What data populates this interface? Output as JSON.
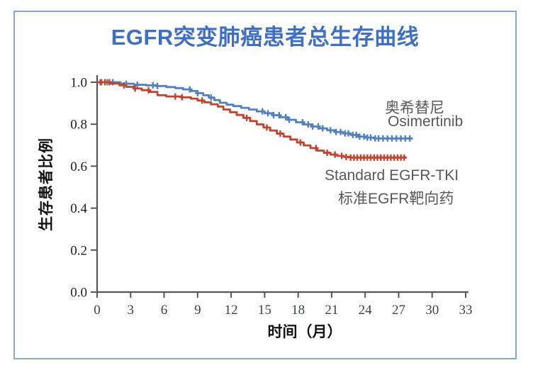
{
  "page": {
    "border_color": "#89a6d4",
    "background_color": "#ffffff"
  },
  "title": {
    "text": "EGFR突变肺癌患者总生存曲线",
    "color": "#3e6fc4"
  },
  "axes": {
    "xlabel": "时间（月）",
    "ylabel": "生存患者比例",
    "axis_color": "#55565a",
    "xtick_color": "#3d434c",
    "ytick_color": "#1c2025"
  },
  "annotations": {
    "osimertinib_zh": "奥希替尼",
    "osimertinib_en": "Osimertinib",
    "standard_en": "Standard EGFR-TKI",
    "standard_zh": "标准EGFR靶向药"
  },
  "chart_data": {
    "type": "line",
    "subtype": "kaplan-meier-step",
    "title": "EGFR突变肺癌患者总生存曲线",
    "xlabel": "时间（月）",
    "ylabel": "生存患者比例",
    "xlim": [
      0,
      33
    ],
    "ylim": [
      0.0,
      1.0
    ],
    "xticks": [
      0,
      3,
      6,
      9,
      12,
      15,
      18,
      21,
      24,
      27,
      30,
      33
    ],
    "yticks": [
      1.0,
      0.8,
      0.6,
      0.4,
      0.2,
      0.0
    ],
    "ytick_labels": [
      "1.0",
      "0.8",
      "0.6",
      "0.4",
      "0.2",
      "0.0"
    ],
    "grid": false,
    "legend_position": "inline-annotations",
    "series": [
      {
        "name": "Osimertinib",
        "label_zh": "奥希替尼",
        "label_en": "Osimertinib",
        "color": "#5180c0",
        "points": [
          [
            0,
            1.0
          ],
          [
            2.1,
            0.993
          ],
          [
            3.3,
            0.988
          ],
          [
            4.4,
            0.985
          ],
          [
            5.3,
            0.982
          ],
          [
            6.2,
            0.977
          ],
          [
            7.0,
            0.972
          ],
          [
            7.7,
            0.966
          ],
          [
            8.4,
            0.958
          ],
          [
            9.0,
            0.948
          ],
          [
            9.5,
            0.938
          ],
          [
            10.0,
            0.927
          ],
          [
            10.5,
            0.915
          ],
          [
            11.0,
            0.902
          ],
          [
            11.6,
            0.893
          ],
          [
            12.2,
            0.886
          ],
          [
            12.9,
            0.878
          ],
          [
            13.6,
            0.87
          ],
          [
            14.3,
            0.861
          ],
          [
            15.0,
            0.852
          ],
          [
            15.7,
            0.843
          ],
          [
            16.4,
            0.833
          ],
          [
            17.1,
            0.821
          ],
          [
            17.8,
            0.809
          ],
          [
            18.5,
            0.799
          ],
          [
            19.2,
            0.789
          ],
          [
            19.9,
            0.78
          ],
          [
            20.6,
            0.771
          ],
          [
            21.3,
            0.763
          ],
          [
            22.0,
            0.756
          ],
          [
            22.7,
            0.749
          ],
          [
            23.4,
            0.741
          ],
          [
            24.1,
            0.736
          ],
          [
            24.8,
            0.732
          ],
          [
            28.2,
            0.732
          ]
        ],
        "censor_months": [
          0.4,
          0.9,
          1.4,
          2.6,
          3.6,
          5.0,
          5.4,
          8.3,
          9.0,
          10.2,
          14.8,
          15.3,
          15.8,
          16.3,
          16.9,
          17.2,
          18.4,
          18.9,
          19.3,
          19.8,
          20.2,
          20.9,
          21.4,
          21.8,
          22.2,
          22.5,
          22.9,
          23.2,
          23.5,
          23.9,
          24.2,
          24.5,
          24.9,
          25.2,
          25.6,
          26.0,
          26.4,
          26.8,
          27.2,
          27.6,
          28.0
        ]
      },
      {
        "name": "Standard EGFR-TKI",
        "label_en": "Standard EGFR-TKI",
        "label_zh": "标准EGFR靶向药",
        "color": "#c1432e",
        "points": [
          [
            0,
            1.0
          ],
          [
            1.2,
            0.994
          ],
          [
            2.0,
            0.985
          ],
          [
            2.6,
            0.978
          ],
          [
            3.3,
            0.97
          ],
          [
            4.0,
            0.962
          ],
          [
            4.7,
            0.954
          ],
          [
            5.4,
            0.938
          ],
          [
            6.2,
            0.932
          ],
          [
            7.6,
            0.928
          ],
          [
            8.4,
            0.922
          ],
          [
            9.0,
            0.913
          ],
          [
            9.6,
            0.904
          ],
          [
            10.2,
            0.895
          ],
          [
            10.8,
            0.884
          ],
          [
            11.3,
            0.87
          ],
          [
            11.9,
            0.857
          ],
          [
            12.5,
            0.844
          ],
          [
            13.1,
            0.83
          ],
          [
            13.7,
            0.815
          ],
          [
            14.3,
            0.799
          ],
          [
            14.9,
            0.784
          ],
          [
            15.5,
            0.77
          ],
          [
            16.1,
            0.755
          ],
          [
            16.7,
            0.741
          ],
          [
            17.3,
            0.727
          ],
          [
            17.9,
            0.713
          ],
          [
            18.5,
            0.699
          ],
          [
            19.1,
            0.686
          ],
          [
            19.7,
            0.674
          ],
          [
            20.3,
            0.664
          ],
          [
            20.9,
            0.655
          ],
          [
            21.5,
            0.649
          ],
          [
            22.1,
            0.644
          ],
          [
            22.7,
            0.641
          ],
          [
            27.6,
            0.641
          ]
        ],
        "censor_months": [
          0.3,
          0.7,
          1.1,
          2.4,
          3.4,
          4.6,
          7.0,
          7.6,
          9.4,
          13.4,
          15.2,
          16.4,
          18.2,
          19.6,
          20.6,
          21.3,
          21.9,
          22.3,
          22.7,
          23.0,
          23.3,
          23.6,
          23.9,
          24.2,
          24.5,
          24.8,
          25.1,
          25.4,
          25.7,
          26.0,
          26.3,
          26.6,
          26.9,
          27.2,
          27.5
        ]
      }
    ]
  }
}
